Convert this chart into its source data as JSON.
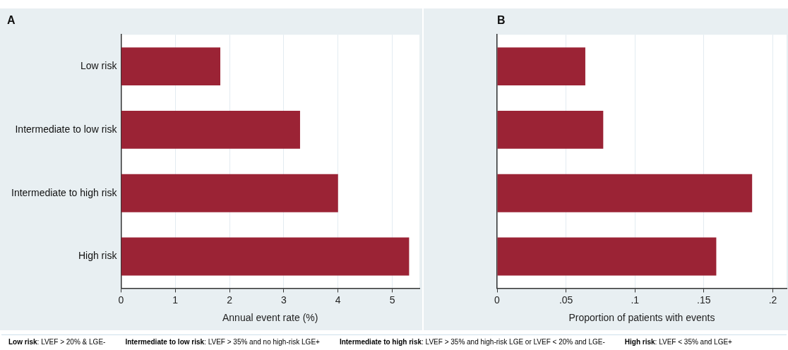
{
  "chart_data": [
    {
      "type": "bar",
      "orientation": "horizontal",
      "title": "A",
      "xlabel": "Annual event rate (%)",
      "categories": [
        "Low risk",
        "Intermediate to low risk",
        "Intermediate to high risk",
        "High risk"
      ],
      "values": [
        1.83,
        3.3,
        4.0,
        5.31
      ],
      "color": "#9b2335",
      "xlim": [
        0,
        5.5
      ],
      "xticks": [
        0,
        1,
        2,
        3,
        4,
        5
      ],
      "grid": "x",
      "legend": false,
      "annotations": [
        "Low risk: LVEF > 20% & LGE-",
        "Intermediate to low risk: LVEF > 35% and no high-risk LGE+",
        "Intermediate to high risk: LVEF > 35% and  high-risk LGE or LVEF < 20% and LGE-",
        "High risk: LVEF < 35% and LGE+"
      ]
    },
    {
      "type": "bar",
      "orientation": "horizontal",
      "title": "B",
      "xlabel": "Proportion of patients with events",
      "categories": [
        null,
        null,
        null,
        null
      ],
      "values": [
        0.064,
        0.077,
        0.185,
        0.159
      ],
      "color": "#9b2335",
      "xlim": [
        0,
        0.21
      ],
      "xticks": [
        0,
        {
          "value": 0.05,
          "label": ".05"
        },
        {
          "value": 0.1,
          "label": ".1"
        },
        {
          "value": 0.15,
          "label": ".15"
        },
        {
          "value": 0.2,
          "label": ".2"
        }
      ],
      "grid": "x",
      "legend": false,
      "tick_labels": "x"
    }
  ]
}
